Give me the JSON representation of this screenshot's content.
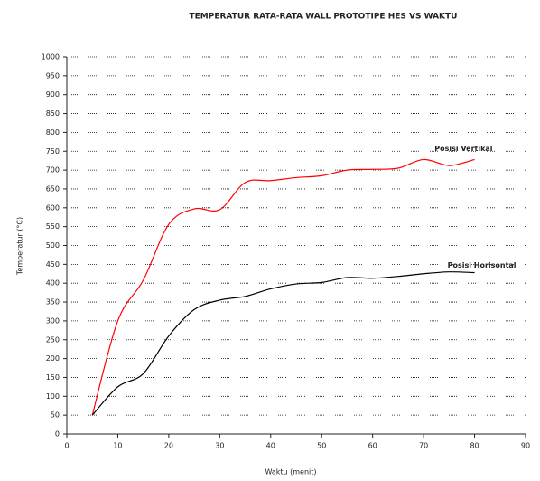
{
  "chart_data": {
    "type": "line",
    "title": "TEMPERATUR RATA-RATA WALL PROTOTIPE HES VS WAKTU",
    "x_label": "Waktu (menit)",
    "y_label": "Temperatur (°C)",
    "x": [
      5,
      10,
      15,
      20,
      25,
      30,
      35,
      40,
      45,
      50,
      55,
      60,
      65,
      70,
      75,
      80
    ],
    "series": [
      {
        "name": "Posisi Vertikal",
        "color": "#ff0000",
        "values": [
          50,
          300,
          408,
          556,
          597,
          595,
          667,
          672,
          680,
          685,
          700,
          702,
          705,
          728,
          712,
          728
        ]
      },
      {
        "name": "Posisi Horisontal",
        "color": "#000000",
        "values": [
          50,
          125,
          160,
          260,
          330,
          355,
          365,
          385,
          398,
          402,
          415,
          413,
          418,
          425,
          430,
          428
        ]
      }
    ],
    "xlim": [
      0,
      90
    ],
    "xticks": [
      0,
      10,
      20,
      30,
      40,
      50,
      60,
      70,
      80,
      90
    ],
    "ylim": [
      0,
      1000
    ],
    "yticks": [
      0,
      50,
      100,
      150,
      200,
      250,
      300,
      350,
      400,
      450,
      500,
      550,
      600,
      650,
      700,
      750,
      800,
      850,
      900,
      950,
      1000
    ],
    "grid": true
  }
}
